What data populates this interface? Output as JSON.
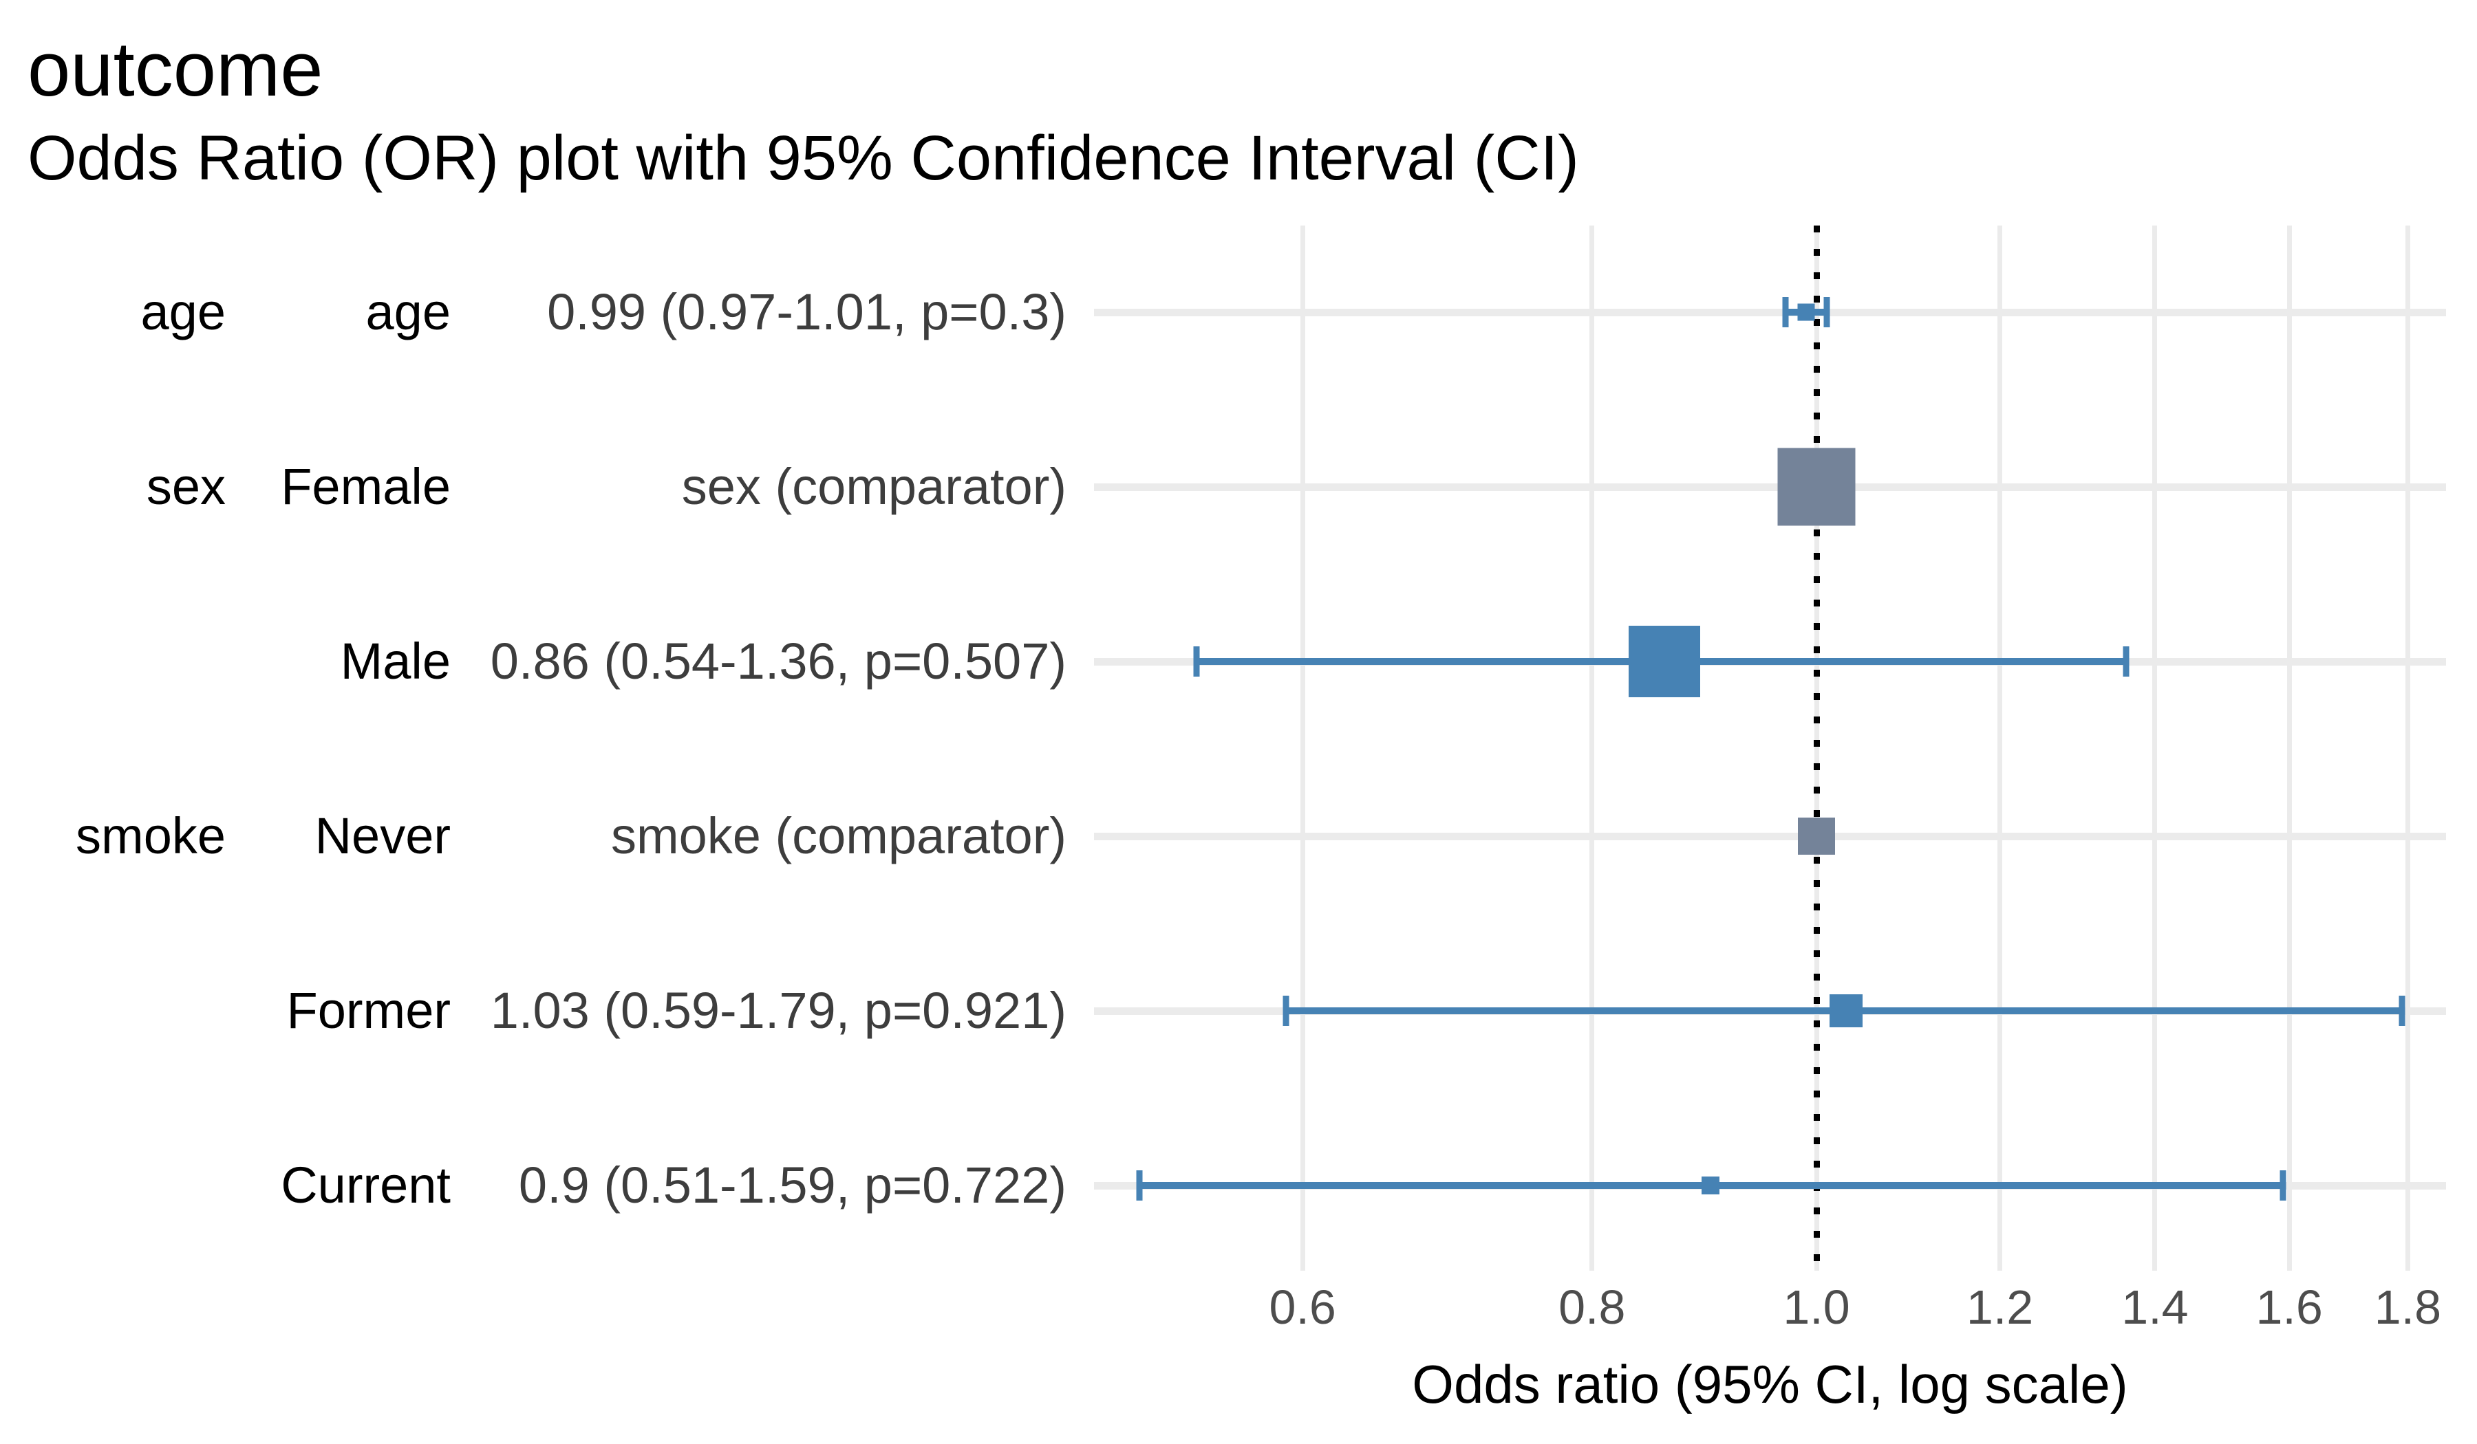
{
  "header": {
    "title": "outcome",
    "subtitle": "Odds Ratio (OR) plot with 95% Confidence Interval (CI)"
  },
  "chart_data": {
    "type": "scatter",
    "subtype": "forest-plot",
    "title": "outcome",
    "subtitle": "Odds Ratio (OR) plot with 95% Confidence Interval (CI)",
    "xlabel": "Odds ratio (95% CI, log scale)",
    "x_scale": "log",
    "xlim": [
      0.49,
      1.88
    ],
    "x_ticks": [
      0.6,
      0.8,
      1.0,
      1.2,
      1.4,
      1.6,
      1.8
    ],
    "x_tick_labels": [
      "0.6",
      "0.8",
      "1.0",
      "1.2",
      "1.4",
      "1.6",
      "1.8"
    ],
    "reference_line": 1.0,
    "grid": true,
    "rows": [
      {
        "variable": "age",
        "level": "age",
        "stat": "0.99 (0.97-1.01, p=0.3)",
        "or": 0.99,
        "ci_low": 0.97,
        "ci_high": 1.01,
        "p": 0.3,
        "comparator": false,
        "box_size": 25
      },
      {
        "variable": "sex",
        "level": "Female",
        "stat": "sex (comparator)",
        "or": 1.0,
        "ci_low": null,
        "ci_high": null,
        "p": null,
        "comparator": true,
        "box_size": 113
      },
      {
        "variable": "",
        "level": "Male",
        "stat": "0.86 (0.54-1.36, p=0.507)",
        "or": 0.86,
        "ci_low": 0.54,
        "ci_high": 1.36,
        "p": 0.507,
        "comparator": false,
        "box_size": 104
      },
      {
        "variable": "smoke",
        "level": "Never",
        "stat": "smoke (comparator)",
        "or": 1.0,
        "ci_low": null,
        "ci_high": null,
        "p": null,
        "comparator": true,
        "box_size": 54
      },
      {
        "variable": "",
        "level": "Former",
        "stat": "1.03 (0.59-1.79, p=0.921)",
        "or": 1.03,
        "ci_low": 0.59,
        "ci_high": 1.79,
        "p": 0.921,
        "comparator": false,
        "box_size": 48
      },
      {
        "variable": "",
        "level": "Current",
        "stat": "0.9 (0.51-1.59, p=0.722)",
        "or": 0.9,
        "ci_low": 0.51,
        "ci_high": 1.59,
        "p": 0.722,
        "comparator": false,
        "box_size": 26
      }
    ],
    "colors": {
      "estimate_blue": "#4682B4",
      "comparator_gray": "#748399",
      "grid_gray": "#ebebeb",
      "reference_line": "#000000",
      "tick_label": "#4d4d4d",
      "stat_text": "#3d3d3d"
    },
    "legend_position": "none"
  }
}
